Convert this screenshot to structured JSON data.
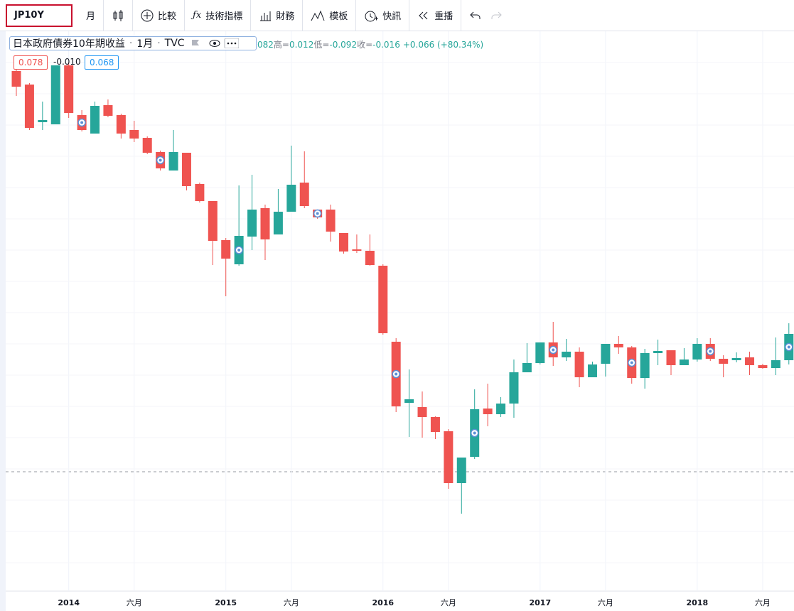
{
  "toolbar": {
    "symbol": "JP10Y",
    "interval": "月",
    "items": [
      "比較",
      "技術指標",
      "財務",
      "模板",
      "快訊",
      "重播"
    ]
  },
  "legend": {
    "title": "日本政府債券10年期收益",
    "interval": "1月",
    "source": "TVC",
    "ohlc": [
      "082",
      "高=",
      "0.012",
      "低=",
      "-0.092",
      "收=",
      "-0.016",
      "+0.066 (+80.34%)"
    ]
  },
  "badges": [
    "0.078",
    "-0.010",
    "0.068"
  ],
  "chart_data": {
    "type": "candlestick",
    "categories": [
      null,
      null,
      null,
      null,
      "2014",
      null,
      null,
      null,
      null,
      "六月",
      null,
      null,
      null,
      null,
      null,
      null,
      "2015",
      null,
      null,
      null,
      null,
      "六月",
      null,
      null,
      null,
      null,
      null,
      null,
      "2016",
      null,
      null,
      null,
      null,
      "六月",
      null,
      null,
      null,
      null,
      null,
      null,
      "2017",
      null,
      null,
      null,
      null,
      "六月",
      null,
      null,
      null,
      null,
      null,
      null,
      "2018",
      null,
      null,
      null,
      null,
      "六月",
      null,
      null
    ],
    "open": [
      0.6968,
      0.6664,
      0.5816,
      0.5768,
      0.7096,
      0.5976,
      0.556,
      0.62,
      0.5976,
      0.564,
      0.5464,
      0.5144,
      0.4728,
      0.5128,
      0.4424,
      0.404,
      0.316,
      0.2616,
      0.324,
      0.388,
      0.3288,
      0.38,
      0.4456,
      0.3848,
      0.3848,
      0.332,
      0.2952,
      0.292,
      0.2584,
      0.0872,
      -0.0504,
      -0.06,
      -0.0824,
      -0.1144,
      -0.2312,
      -0.172,
      -0.0632,
      -0.076,
      -0.052,
      0.0184,
      0.0392,
      0.0856,
      0.052,
      0.0648,
      0.0072,
      0.0376,
      0.0824,
      0.0744,
      0.0056,
      0.0616,
      0.068,
      0.0344,
      0.0472,
      0.0824,
      0.0488,
      0.0456,
      0.052,
      0.0344,
      0.028,
      0.0456
    ],
    "high": [
      0.7096,
      0.6696,
      0.628,
      0.7096,
      0.716,
      0.6088,
      0.628,
      0.6328,
      0.6008,
      0.5848,
      0.5496,
      0.5176,
      0.564,
      0.5128,
      0.4456,
      0.404,
      0.3208,
      0.4392,
      0.4632,
      0.396,
      0.4312,
      0.5288,
      0.516,
      0.3848,
      0.396,
      0.332,
      0.3288,
      0.3288,
      0.2616,
      0.0952,
      0.0248,
      -0.0248,
      -0.0808,
      -0.1096,
      -0.1736,
      -0.02,
      -0.0072,
      -0.0376,
      0.0472,
      0.084,
      0.0856,
      0.132,
      0.0936,
      0.0744,
      0.0424,
      0.0824,
      0.1,
      0.0776,
      0.0712,
      0.092,
      0.068,
      0.0728,
      0.0952,
      0.0952,
      0.0568,
      0.0632,
      0.0648,
      0.0376,
      0.0968,
      0.1288
    ],
    "low": [
      0.6408,
      0.564,
      0.564,
      0.5768,
      0.5912,
      0.5608,
      0.556,
      0.5928,
      0.5448,
      0.5368,
      0.5096,
      0.4728,
      0.4728,
      0.428,
      0.4008,
      0.26,
      0.1896,
      0.2584,
      0.2936,
      0.2712,
      0.3288,
      0.38,
      0.388,
      0.364,
      0.3128,
      0.2856,
      0.2872,
      0.2584,
      0.1032,
      -0.0712,
      -0.1272,
      -0.1288,
      -0.132,
      -0.244,
      -0.3,
      -0.1768,
      -0.1032,
      -0.0824,
      -0.084,
      0.0184,
      0.036,
      0.0328,
      0.044,
      -0.0152,
      0.0072,
      0.0088,
      0.06,
      -0.0072,
      -0.0184,
      0.0344,
      0.012,
      0.0344,
      0.0424,
      0.044,
      0.0072,
      0.0408,
      0.012,
      0.0264,
      0.012,
      0.036
    ],
    "close": [
      0.6616,
      0.5688,
      0.5864,
      0.7096,
      0.6024,
      0.564,
      0.6184,
      0.596,
      0.556,
      0.5448,
      0.5128,
      0.4776,
      0.5144,
      0.4376,
      0.404,
      0.3144,
      0.2744,
      0.3256,
      0.3848,
      0.3176,
      0.38,
      0.4408,
      0.3928,
      0.3672,
      0.3352,
      0.2904,
      0.292,
      0.26,
      0.1064,
      -0.0584,
      -0.0424,
      -0.0824,
      -0.116,
      -0.2312,
      -0.1736,
      -0.0648,
      -0.076,
      -0.052,
      0.0184,
      0.0392,
      0.0856,
      0.052,
      0.0648,
      0.0072,
      0.036,
      0.0824,
      0.0744,
      0.0056,
      0.0616,
      0.0664,
      0.0344,
      0.0472,
      0.0824,
      0.0488,
      0.0376,
      0.0504,
      0.0344,
      0.028,
      0.0456,
      0.1048
    ],
    "up_color": "#26a69a",
    "down_color": "#ef5350",
    "ylim": [
      -0.5,
      0.8
    ]
  }
}
